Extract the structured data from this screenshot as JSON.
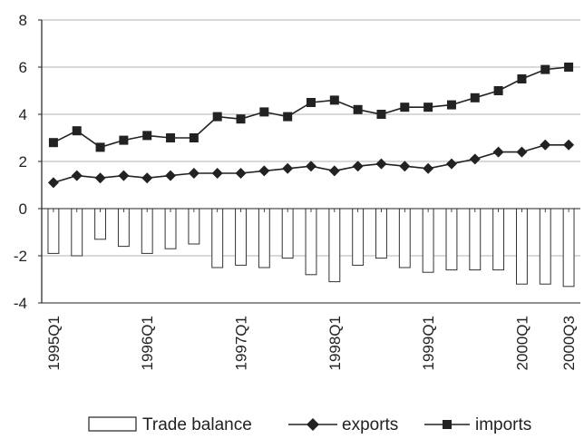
{
  "chart_data": {
    "type": "bar",
    "categories": [
      "1995Q1",
      "1995Q2",
      "1995Q3",
      "1995Q4",
      "1996Q1",
      "1996Q2",
      "1996Q3",
      "1996Q4",
      "1997Q1",
      "1997Q2",
      "1997Q3",
      "1997Q4",
      "1998Q1",
      "1998Q2",
      "1998Q3",
      "1998Q4",
      "1999Q1",
      "1999Q2",
      "1999Q3",
      "1999Q4",
      "2000Q1",
      "2000Q2",
      "2000Q3"
    ],
    "x_tick_labels": [
      "1995Q1",
      "1996Q1",
      "1997Q1",
      "1998Q1",
      "1999Q1",
      "2000Q1",
      "2000Q3"
    ],
    "ylim": [
      -4,
      8
    ],
    "y_ticks": [
      8,
      6,
      4,
      2,
      0,
      -2,
      -4
    ],
    "grid": true,
    "legend_position": "bottom",
    "series": [
      {
        "name": "Trade balance",
        "type": "bar",
        "color": "#ffffff",
        "values": [
          -1.9,
          -2.0,
          -1.3,
          -1.6,
          -1.9,
          -1.7,
          -1.5,
          -2.5,
          -2.4,
          -2.5,
          -2.1,
          -2.8,
          -3.1,
          -2.4,
          -2.1,
          -2.5,
          -2.7,
          -2.6,
          -2.6,
          -2.6,
          -3.2,
          -3.2,
          -3.3
        ]
      },
      {
        "name": "exports",
        "type": "line",
        "marker": "diamond",
        "color": "#222222",
        "values": [
          1.1,
          1.4,
          1.3,
          1.4,
          1.3,
          1.4,
          1.5,
          1.5,
          1.5,
          1.6,
          1.7,
          1.8,
          1.6,
          1.8,
          1.9,
          1.8,
          1.7,
          1.9,
          2.1,
          2.4,
          2.4,
          2.7,
          2.7
        ]
      },
      {
        "name": "imports",
        "type": "line",
        "marker": "square",
        "color": "#222222",
        "values": [
          2.8,
          3.3,
          2.6,
          2.9,
          3.1,
          3.0,
          3.0,
          3.9,
          3.8,
          4.1,
          3.9,
          4.5,
          4.6,
          4.2,
          4.0,
          4.3,
          4.3,
          4.4,
          4.7,
          5.0,
          5.5,
          5.9,
          6.0
        ]
      }
    ]
  }
}
